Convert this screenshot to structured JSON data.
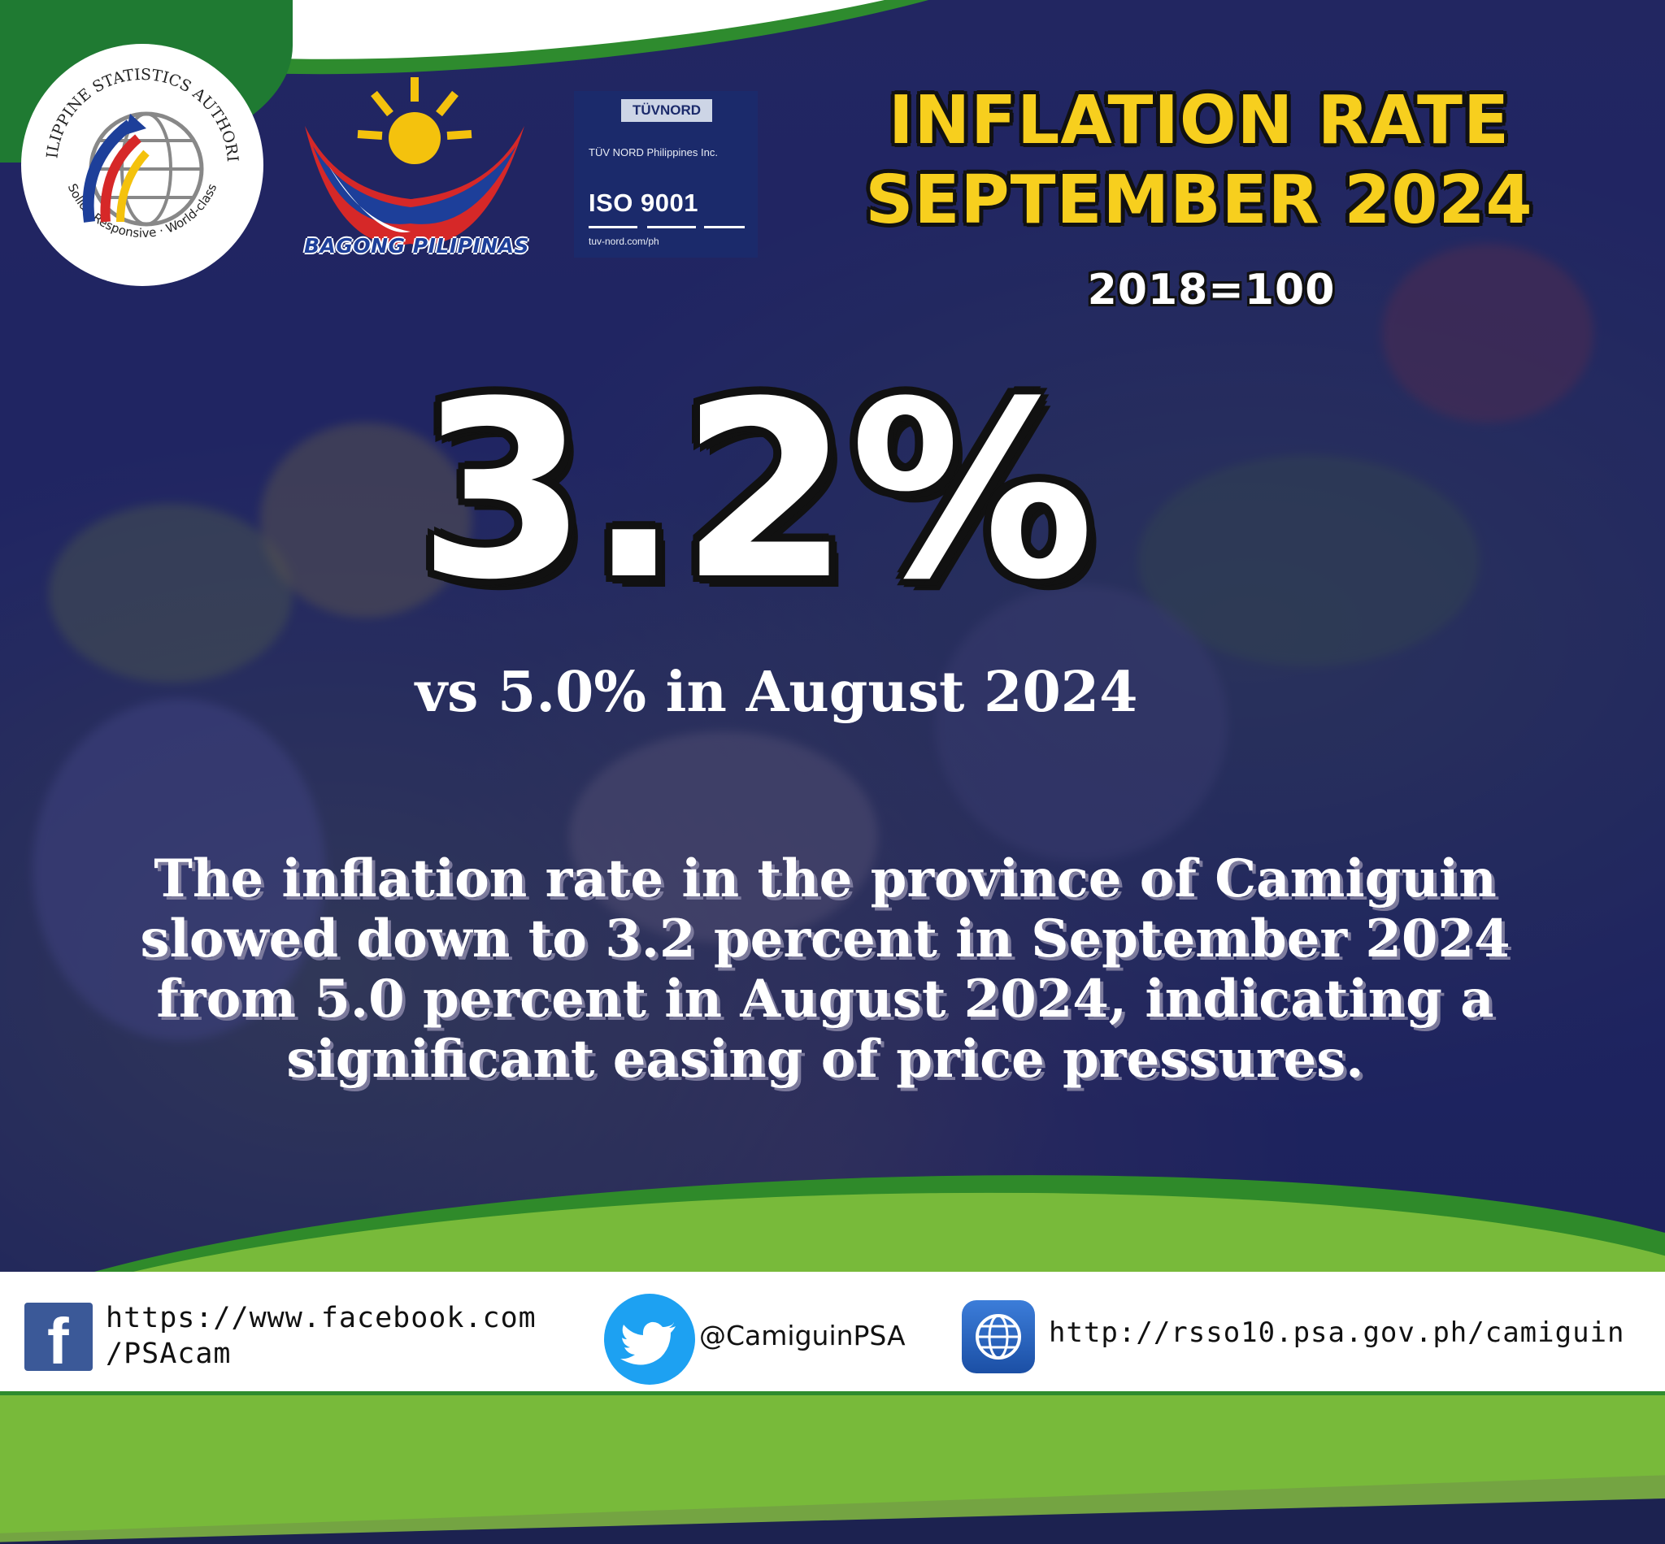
{
  "logos": {
    "psa_arc_top": "PHILIPPINE STATISTICS AUTHORITY",
    "psa_arc_bottom": "Solid · Responsive · World-class",
    "bagong_pilipinas": "BAGONG PILIPINAS",
    "tuv_brand": "TÜVNORD",
    "tuv_company": "TÜV NORD Philippines Inc.",
    "tuv_iso": "ISO 9001",
    "tuv_url": "tuv-nord.com/ph"
  },
  "header": {
    "title_line1": "INFLATION RATE",
    "title_line2": "SEPTEMBER 2024",
    "base_year": "2018=100"
  },
  "main": {
    "rate": "3.2%",
    "comparison": "vs 5.0% in August 2024",
    "description": "The inflation rate in the province of Camiguin slowed down to 3.2 percent in September 2024 from 5.0 percent in August 2024, indicating a significant easing of price pressures."
  },
  "footer": {
    "facebook_line1": "https://www.facebook.com",
    "facebook_line2": "/PSAcam",
    "twitter": "@CamiguinPSA",
    "website": "http://rsso10.psa.gov.ph/camiguin"
  },
  "colors": {
    "title_yellow": "#f7cf1e",
    "overlay_navy": "#1c2064",
    "green": "#2e8b2e",
    "facebook_blue": "#3b5998",
    "twitter_blue": "#1da1f2"
  },
  "icons": [
    "facebook-icon",
    "twitter-icon",
    "globe-icon"
  ]
}
